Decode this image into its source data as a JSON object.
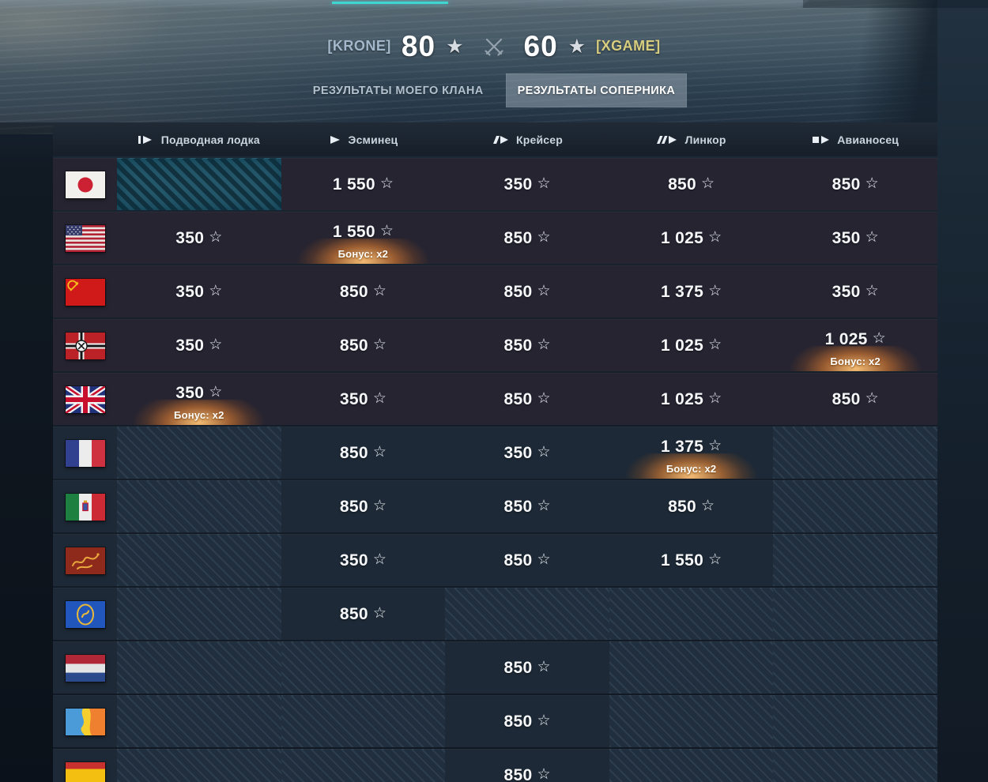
{
  "header": {
    "left_tag": "[KRONE]",
    "left_score": "80",
    "right_score": "60",
    "right_tag": "[XGAME]"
  },
  "tabs": {
    "my_clan": "РЕЗУЛЬТАТЫ МОЕГО КЛАНА",
    "opponent": "РЕЗУЛЬТАТЫ СОПЕРНИКА"
  },
  "icons": {
    "star_filled": "★",
    "star_outline": "☆"
  },
  "colors": {
    "accent_teal": "#3fd6d2",
    "bonus_orange": "#ff9a3d",
    "left_tag_color": "#a4b8cb",
    "right_tag_color": "#d9ce7f"
  },
  "table": {
    "bonus_label": "Бонус: x2",
    "columns": [
      {
        "id": "submarine",
        "label": "Подводная лодка"
      },
      {
        "id": "destroyer",
        "label": "Эсминец"
      },
      {
        "id": "cruiser",
        "label": "Крейсер"
      },
      {
        "id": "battleship",
        "label": "Линкор"
      },
      {
        "id": "carrier",
        "label": "Авианосец"
      }
    ],
    "rows": [
      {
        "nation": "japan",
        "cells": [
          {
            "type": "empty",
            "bright": true
          },
          {
            "type": "value",
            "value": "1 550"
          },
          {
            "type": "value",
            "value": "350"
          },
          {
            "type": "value",
            "value": "850"
          },
          {
            "type": "value",
            "value": "850"
          }
        ]
      },
      {
        "nation": "usa",
        "cells": [
          {
            "type": "value",
            "value": "350"
          },
          {
            "type": "value",
            "value": "1 550",
            "bonus": true
          },
          {
            "type": "value",
            "value": "850"
          },
          {
            "type": "value",
            "value": "1 025"
          },
          {
            "type": "value",
            "value": "350"
          }
        ]
      },
      {
        "nation": "ussr",
        "cells": [
          {
            "type": "value",
            "value": "350"
          },
          {
            "type": "value",
            "value": "850"
          },
          {
            "type": "value",
            "value": "850"
          },
          {
            "type": "value",
            "value": "1 375"
          },
          {
            "type": "value",
            "value": "350"
          }
        ]
      },
      {
        "nation": "germany",
        "cells": [
          {
            "type": "value",
            "value": "350"
          },
          {
            "type": "value",
            "value": "850"
          },
          {
            "type": "value",
            "value": "850"
          },
          {
            "type": "value",
            "value": "1 025"
          },
          {
            "type": "value",
            "value": "1 025",
            "bonus": true
          }
        ]
      },
      {
        "nation": "uk",
        "cells": [
          {
            "type": "value",
            "value": "350",
            "bonus": true
          },
          {
            "type": "value",
            "value": "350"
          },
          {
            "type": "value",
            "value": "850"
          },
          {
            "type": "value",
            "value": "1 025"
          },
          {
            "type": "value",
            "value": "850"
          }
        ]
      },
      {
        "nation": "france",
        "cells": [
          {
            "type": "empty"
          },
          {
            "type": "value",
            "value": "850"
          },
          {
            "type": "value",
            "value": "350"
          },
          {
            "type": "value",
            "value": "1 375",
            "bonus": true
          },
          {
            "type": "empty"
          }
        ]
      },
      {
        "nation": "italy",
        "cells": [
          {
            "type": "empty"
          },
          {
            "type": "value",
            "value": "850"
          },
          {
            "type": "value",
            "value": "850"
          },
          {
            "type": "value",
            "value": "850"
          },
          {
            "type": "empty"
          }
        ]
      },
      {
        "nation": "pan_asia",
        "cells": [
          {
            "type": "empty"
          },
          {
            "type": "value",
            "value": "350"
          },
          {
            "type": "value",
            "value": "850"
          },
          {
            "type": "value",
            "value": "1 550"
          },
          {
            "type": "empty"
          }
        ]
      },
      {
        "nation": "commonwealth",
        "cells": [
          {
            "type": "empty"
          },
          {
            "type": "value",
            "value": "850"
          },
          {
            "type": "empty"
          },
          {
            "type": "empty"
          },
          {
            "type": "empty"
          }
        ]
      },
      {
        "nation": "netherlands",
        "cells": [
          {
            "type": "empty"
          },
          {
            "type": "empty"
          },
          {
            "type": "value",
            "value": "850"
          },
          {
            "type": "empty"
          },
          {
            "type": "empty"
          }
        ]
      },
      {
        "nation": "pan_america",
        "cells": [
          {
            "type": "empty"
          },
          {
            "type": "empty"
          },
          {
            "type": "value",
            "value": "850"
          },
          {
            "type": "empty"
          },
          {
            "type": "empty"
          }
        ]
      },
      {
        "nation": "spain",
        "cells": [
          {
            "type": "empty"
          },
          {
            "type": "empty"
          },
          {
            "type": "value",
            "value": "850"
          },
          {
            "type": "empty"
          },
          {
            "type": "empty"
          }
        ]
      }
    ]
  }
}
